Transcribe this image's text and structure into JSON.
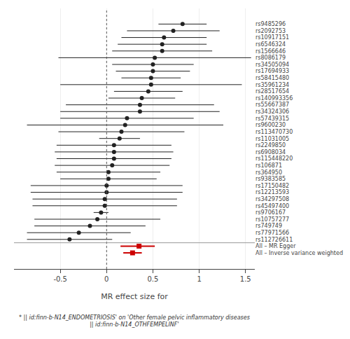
{
  "chart_data": {
    "type": "forest",
    "xlabel": "MR effect size for",
    "footnote": "* || id:finn-b-N14_ENDOMETRIOSIS' on 'Other female pelvic inflammatory diseases || id:finn-b-N14_OTHFEMPELINF'",
    "categories": [
      "rs9485296",
      "rs2092753",
      "rs10917151",
      "rs6546324",
      "rs1566646",
      "rs8086179",
      "rs34505094",
      "rs17694933",
      "rs58415480",
      "rs35961234",
      "rs28517654",
      "rs140993356",
      "rs55667387",
      "rs34324306",
      "rs57439315",
      "rs9600230",
      "rs113470730",
      "rs11031005",
      "rs2249850",
      "rs6908034",
      "rs115448220",
      "rs106871",
      "rs364950",
      "rs9383585",
      "rs17150482",
      "rs12213593",
      "rs34297508",
      "rs45497400",
      "rs9706167",
      "rs10757277",
      "rs749749",
      "rs77971566",
      "rs112726611",
      "All – MR Egger",
      "All – Inverse variance weighted"
    ],
    "series": [
      {
        "color": "#222222",
        "marker": "circle",
        "values": [
          0.82,
          0.72,
          0.62,
          0.6,
          0.6,
          0.52,
          0.5,
          0.5,
          0.48,
          0.48,
          0.45,
          0.38,
          0.36,
          0.36,
          0.22,
          0.2,
          0.16,
          0.14,
          0.08,
          0.08,
          0.08,
          0.06,
          0.02,
          0.02,
          0.0,
          0.0,
          -0.02,
          -0.02,
          -0.06,
          -0.1,
          -0.18,
          -0.3,
          -0.4,
          null,
          null
        ],
        "ci_lower": [
          0.56,
          0.22,
          0.16,
          0.12,
          0.06,
          -0.52,
          0.06,
          0.1,
          0.16,
          -0.5,
          0.08,
          0.02,
          -0.44,
          -0.5,
          -0.5,
          -0.86,
          -0.52,
          -0.08,
          -0.54,
          -0.56,
          -0.54,
          -0.56,
          -0.54,
          -0.5,
          -0.82,
          -0.82,
          -0.8,
          -0.8,
          -0.14,
          -0.78,
          -0.78,
          -0.86,
          -0.86,
          null,
          null
        ],
        "ci_upper": [
          1.08,
          1.22,
          1.08,
          1.08,
          1.14,
          1.56,
          0.94,
          0.9,
          0.8,
          1.46,
          0.82,
          0.74,
          1.16,
          1.22,
          0.94,
          1.26,
          0.84,
          0.36,
          0.7,
          0.72,
          0.7,
          0.68,
          0.58,
          0.54,
          0.82,
          0.82,
          0.76,
          0.76,
          0.02,
          0.58,
          0.42,
          0.26,
          0.06,
          null,
          null
        ]
      },
      {
        "color": "#cc0000",
        "marker": "square",
        "values": [
          null,
          null,
          null,
          null,
          null,
          null,
          null,
          null,
          null,
          null,
          null,
          null,
          null,
          null,
          null,
          null,
          null,
          null,
          null,
          null,
          null,
          null,
          null,
          null,
          null,
          null,
          null,
          null,
          null,
          null,
          null,
          null,
          null,
          0.35,
          0.28
        ],
        "ci_lower": [
          null,
          null,
          null,
          null,
          null,
          null,
          null,
          null,
          null,
          null,
          null,
          null,
          null,
          null,
          null,
          null,
          null,
          null,
          null,
          null,
          null,
          null,
          null,
          null,
          null,
          null,
          null,
          null,
          null,
          null,
          null,
          null,
          null,
          0.15,
          0.18
        ],
        "ci_upper": [
          null,
          null,
          null,
          null,
          null,
          null,
          null,
          null,
          null,
          null,
          null,
          null,
          null,
          null,
          null,
          null,
          null,
          null,
          null,
          null,
          null,
          null,
          null,
          null,
          null,
          null,
          null,
          null,
          null,
          null,
          null,
          null,
          null,
          0.52,
          0.38
        ]
      }
    ],
    "reference_line": 0.0,
    "xlim": [
      -1.0,
      1.6
    ],
    "xticks": [
      -0.5,
      0.0,
      0.5,
      1.0,
      1.5
    ],
    "grid": "x"
  }
}
